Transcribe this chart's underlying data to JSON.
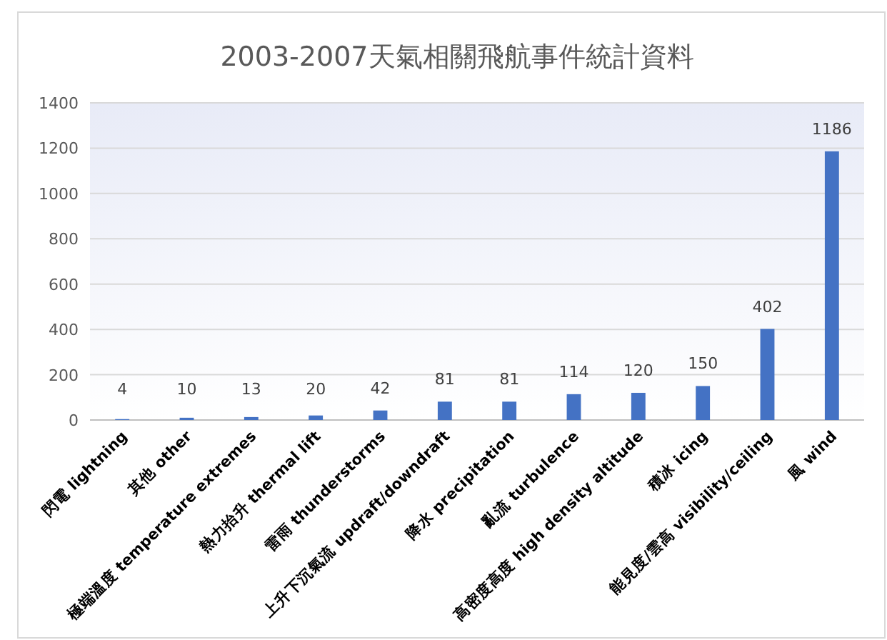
{
  "chart_data": {
    "type": "bar",
    "title": "2003-2007天氣相關飛航事件統計資料",
    "categories": [
      "閃電 lightning",
      "其他 other",
      "極端溫度 temperature extremes",
      "熱力抬升 thermal lift",
      "雷雨 thunderstorms",
      "上升下沉氣流 updraft/downdraft",
      "降水 precipitation",
      "亂流 turbulence",
      "高密度高度 high density altitude",
      "積冰 icing",
      "能見度/雲高 visibility/ceiling",
      "風 wind"
    ],
    "values": [
      4,
      10,
      13,
      20,
      42,
      81,
      81,
      114,
      120,
      150,
      402,
      1186
    ],
    "color": "#4472c4",
    "ylim": [
      0,
      1400
    ],
    "yticks": [
      0,
      200,
      400,
      600,
      800,
      1000,
      1200,
      1400
    ],
    "grid": "y",
    "data_labels": true
  }
}
